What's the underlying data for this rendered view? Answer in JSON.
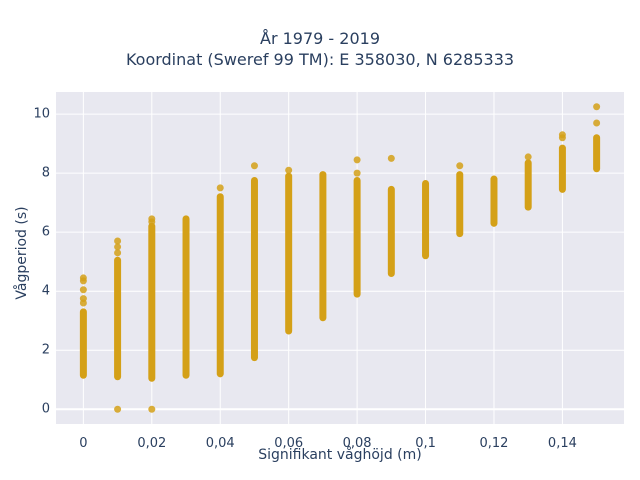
{
  "chart_data": {
    "type": "scatter",
    "title": "År 1979 - 2019",
    "subtitle": "Koordinat (Sweref 99 TM): E 358030, N 6285333",
    "xlabel": "Signifikant våghöjd (m)",
    "ylabel": "Vågperiod (s)",
    "xlim": [
      -0.008,
      0.158
    ],
    "ylim": [
      -0.5,
      10.75
    ],
    "x_ticks": [
      0,
      0.02,
      0.04,
      0.06,
      0.08,
      0.1,
      0.12,
      0.14
    ],
    "x_tick_labels": [
      "0",
      "0,02",
      "0,04",
      "0,06",
      "0,08",
      "0,1",
      "0,12",
      "0,14"
    ],
    "y_ticks": [
      0,
      2,
      4,
      6,
      8,
      10
    ],
    "y_tick_labels": [
      "0",
      "2",
      "4",
      "6",
      "8",
      "10"
    ],
    "grid": true,
    "marker_color": "#d4a017",
    "plot_bg": "#e8e8f0",
    "columns": [
      {
        "x": 0.0,
        "y_min": 1.15,
        "y_max": 3.3,
        "outliers": [
          3.6,
          3.75,
          4.05,
          4.35,
          4.45
        ]
      },
      {
        "x": 0.01,
        "y_min": 1.1,
        "y_max": 5.05,
        "outliers": [
          0,
          5.3,
          5.5,
          5.7
        ]
      },
      {
        "x": 0.02,
        "y_min": 1.05,
        "y_max": 6.2,
        "outliers": [
          0,
          6.35,
          6.45
        ]
      },
      {
        "x": 0.03,
        "y_min": 1.15,
        "y_max": 6.45,
        "outliers": []
      },
      {
        "x": 0.04,
        "y_min": 1.2,
        "y_max": 7.2,
        "outliers": [
          7.5
        ]
      },
      {
        "x": 0.05,
        "y_min": 1.75,
        "y_max": 7.75,
        "outliers": [
          8.25
        ]
      },
      {
        "x": 0.06,
        "y_min": 2.65,
        "y_max": 7.9,
        "outliers": [
          8.1
        ]
      },
      {
        "x": 0.07,
        "y_min": 3.1,
        "y_max": 7.95,
        "outliers": []
      },
      {
        "x": 0.08,
        "y_min": 3.9,
        "y_max": 7.75,
        "outliers": [
          8.0,
          8.45
        ]
      },
      {
        "x": 0.09,
        "y_min": 4.6,
        "y_max": 7.45,
        "outliers": [
          8.5
        ]
      },
      {
        "x": 0.1,
        "y_min": 5.2,
        "y_max": 7.65,
        "outliers": []
      },
      {
        "x": 0.11,
        "y_min": 5.95,
        "y_max": 7.95,
        "outliers": [
          8.25
        ]
      },
      {
        "x": 0.12,
        "y_min": 6.3,
        "y_max": 7.8,
        "outliers": []
      },
      {
        "x": 0.13,
        "y_min": 6.85,
        "y_max": 8.35,
        "outliers": [
          8.55
        ]
      },
      {
        "x": 0.14,
        "y_min": 7.45,
        "y_max": 8.85,
        "outliers": [
          9.2,
          9.3
        ]
      },
      {
        "x": 0.15,
        "y_min": 8.15,
        "y_max": 9.2,
        "outliers": [
          9.7,
          10.25
        ]
      }
    ]
  }
}
